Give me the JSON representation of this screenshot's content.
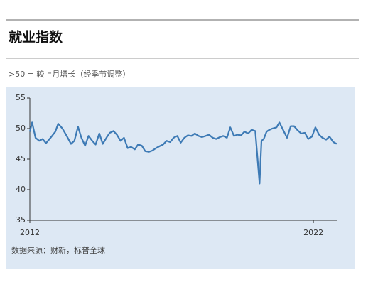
{
  "chart_data": {
    "type": "line",
    "title": "就业指数",
    "subtitle": ">50 = 较上月增长（经季节调整）",
    "source": "数据来源：财新，标普全球",
    "x": [
      2012.0,
      2012.08,
      2012.2,
      2012.33,
      2012.45,
      2012.57,
      2012.75,
      2012.9,
      2013.0,
      2013.15,
      2013.3,
      2013.45,
      2013.57,
      2013.7,
      2013.82,
      2013.95,
      2014.07,
      2014.2,
      2014.32,
      2014.45,
      2014.57,
      2014.7,
      2014.82,
      2014.95,
      2015.07,
      2015.2,
      2015.32,
      2015.45,
      2015.57,
      2015.7,
      2015.82,
      2015.95,
      2016.07,
      2016.2,
      2016.32,
      2016.45,
      2016.57,
      2016.7,
      2016.82,
      2016.95,
      2017.07,
      2017.2,
      2017.32,
      2017.45,
      2017.57,
      2017.7,
      2017.82,
      2017.95,
      2018.07,
      2018.2,
      2018.32,
      2018.45,
      2018.57,
      2018.7,
      2018.82,
      2018.95,
      2019.07,
      2019.2,
      2019.32,
      2019.45,
      2019.57,
      2019.7,
      2019.82,
      2019.95,
      2020.1,
      2020.17,
      2020.25,
      2020.35,
      2020.45,
      2020.55,
      2020.7,
      2020.8,
      2020.95,
      2021.07,
      2021.2,
      2021.32,
      2021.45,
      2021.57,
      2021.7,
      2021.82,
      2021.95,
      2022.07,
      2022.2,
      2022.32,
      2022.45,
      2022.57,
      2022.7,
      2022.82
    ],
    "series": [
      {
        "color": "#3d7ab5",
        "values": [
          49.5,
          51,
          48.5,
          48,
          48.3,
          47.6,
          48.6,
          49.5,
          50.8,
          50,
          48.8,
          47.5,
          48,
          50.3,
          48.5,
          47.2,
          48.8,
          48,
          47.4,
          49.2,
          47.5,
          48.5,
          49.3,
          49.6,
          49,
          48,
          48.5,
          46.8,
          47,
          46.6,
          47.4,
          47.2,
          46.3,
          46.2,
          46.4,
          46.8,
          47.1,
          47.4,
          48,
          47.8,
          48.5,
          48.8,
          47.7,
          48.5,
          48.9,
          48.8,
          49.2,
          48.8,
          48.6,
          48.8,
          49,
          48.5,
          48.3,
          48.6,
          48.8,
          48.5,
          50.2,
          48.8,
          49,
          48.9,
          49.5,
          49.2,
          49.8,
          49.6,
          41,
          48,
          48.3,
          49.5,
          49.8,
          50,
          50.2,
          51,
          49.6,
          48.5,
          50.4,
          50.4,
          49.7,
          49.2,
          49.3,
          48.3,
          48.7,
          50.2,
          49,
          48.5,
          48.2,
          48.7,
          47.8,
          47.5
        ]
      }
    ],
    "xlim": [
      2012,
      2022.85
    ],
    "xticks": [
      2012,
      2022
    ],
    "ylim": [
      35,
      55
    ],
    "yticks": [
      35,
      40,
      45,
      50,
      55
    ]
  }
}
